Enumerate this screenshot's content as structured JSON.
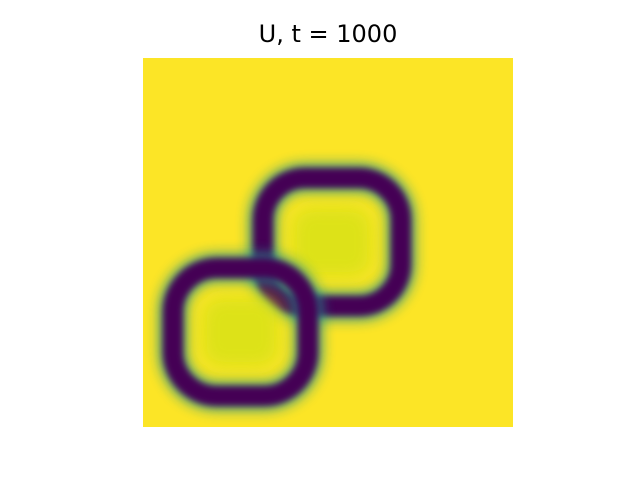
{
  "chart_data": {
    "type": "heatmap",
    "title": "U, t = 1000",
    "xlabel": "",
    "ylabel": "",
    "axes_visible": false,
    "colormap": "viridis",
    "colors": {
      "background": "#fce526",
      "ring": "#440154",
      "transition": "#21918c",
      "center": "#d8e219"
    },
    "value_range": [
      0,
      1
    ],
    "background_value": 1.0,
    "features": [
      {
        "name": "upper-right-ring",
        "shape": "rounded-square-ring",
        "ring_value": 0.0,
        "center_value": 0.92
      },
      {
        "name": "lower-left-ring",
        "shape": "rounded-square-ring",
        "ring_value": 0.0,
        "center_value": 0.9
      }
    ]
  }
}
